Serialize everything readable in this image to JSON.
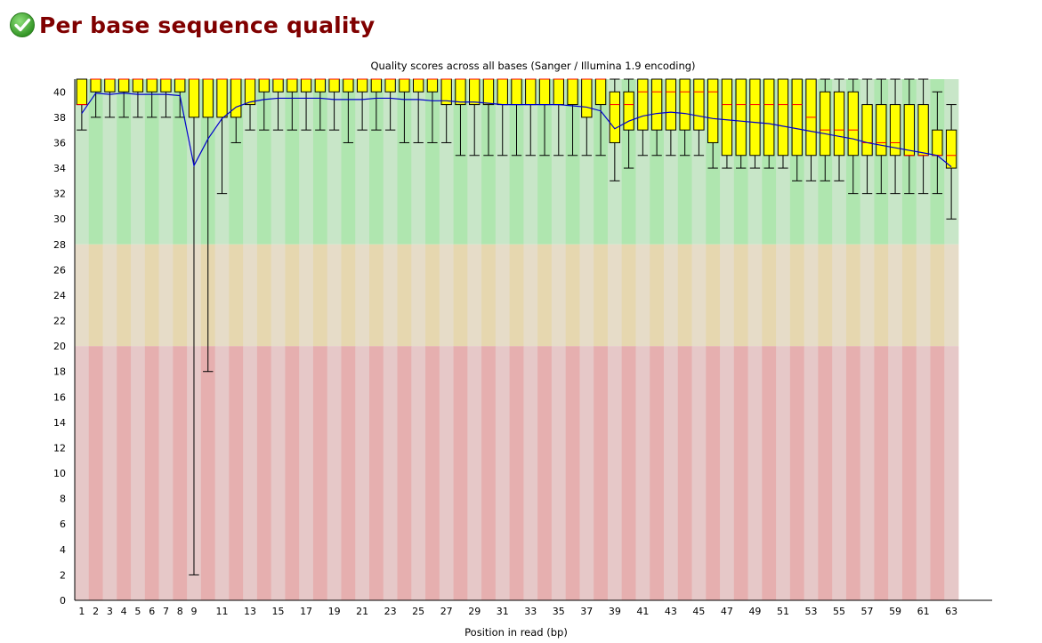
{
  "header": {
    "title": "Per base sequence quality",
    "status_icon": "pass-check-icon",
    "status_color": "#3aa62c"
  },
  "colors": {
    "title_color": "#800000",
    "zone_good": "#c8e6c8",
    "zone_good_alt": "#afe6af",
    "zone_warn": "#e6dcc8",
    "zone_warn_alt": "#e6d7af",
    "zone_bad": "#e6c8c8",
    "zone_bad_alt": "#e6afaf",
    "box_fill": "#ffff00",
    "median": "#ff0000",
    "mean_line": "#0000cc"
  },
  "chart_data": {
    "type": "boxplot",
    "title": "Quality scores across all bases (Sanger / Illumina 1.9 encoding)",
    "xlabel": "Position in read (bp)",
    "ylabel": "",
    "ylim": [
      0,
      41
    ],
    "yticks": [
      0,
      2,
      4,
      6,
      8,
      10,
      12,
      14,
      16,
      18,
      20,
      22,
      24,
      26,
      28,
      30,
      32,
      34,
      36,
      38,
      40
    ],
    "xtick_labels": [
      "1",
      "2",
      "3",
      "4",
      "5",
      "6",
      "7",
      "8",
      "9",
      "11",
      "13",
      "15",
      "17",
      "19",
      "21",
      "23",
      "25",
      "27",
      "29",
      "31",
      "33",
      "35",
      "37",
      "39",
      "41",
      "43",
      "45",
      "47",
      "49",
      "51",
      "53",
      "55",
      "57",
      "59",
      "61",
      "63"
    ],
    "zones": [
      {
        "name": "good",
        "from": 28,
        "to": 41
      },
      {
        "name": "reasonable",
        "from": 20,
        "to": 28
      },
      {
        "name": "poor",
        "from": 0,
        "to": 20
      }
    ],
    "positions": [
      1,
      2,
      3,
      4,
      5,
      6,
      7,
      8,
      9,
      10,
      11,
      12,
      13,
      14,
      15,
      16,
      17,
      18,
      19,
      20,
      21,
      22,
      23,
      24,
      25,
      26,
      27,
      28,
      29,
      30,
      31,
      32,
      33,
      34,
      35,
      36,
      37,
      38,
      39,
      40,
      41,
      42,
      43,
      44,
      45,
      46,
      47,
      48,
      49,
      50,
      51,
      52,
      53,
      54,
      55,
      56,
      57,
      58,
      59,
      60,
      61,
      62,
      63
    ],
    "q1": [
      39,
      40,
      40,
      40,
      40,
      40,
      40,
      40,
      38,
      38,
      38,
      38,
      39,
      40,
      40,
      40,
      40,
      40,
      40,
      40,
      40,
      40,
      40,
      40,
      40,
      40,
      39,
      39,
      39,
      39,
      39,
      39,
      39,
      39,
      39,
      39,
      38,
      39,
      36,
      37,
      37,
      37,
      37,
      37,
      37,
      36,
      35,
      35,
      35,
      35,
      35,
      35,
      35,
      35,
      35,
      35,
      35,
      35,
      35,
      35,
      35,
      35,
      34
    ],
    "median": [
      39,
      41,
      41,
      41,
      41,
      41,
      41,
      41,
      41,
      41,
      41,
      41,
      41,
      41,
      41,
      41,
      41,
      41,
      41,
      41,
      41,
      41,
      41,
      41,
      41,
      41,
      41,
      41,
      41,
      41,
      41,
      41,
      41,
      41,
      41,
      41,
      41,
      41,
      39,
      39,
      40,
      40,
      40,
      40,
      40,
      40,
      39,
      39,
      39,
      39,
      39,
      39,
      38,
      37,
      37,
      37,
      36,
      36,
      36,
      35,
      35,
      35,
      35
    ],
    "q3": [
      41,
      41,
      41,
      41,
      41,
      41,
      41,
      41,
      41,
      41,
      41,
      41,
      41,
      41,
      41,
      41,
      41,
      41,
      41,
      41,
      41,
      41,
      41,
      41,
      41,
      41,
      41,
      41,
      41,
      41,
      41,
      41,
      41,
      41,
      41,
      41,
      41,
      41,
      40,
      40,
      41,
      41,
      41,
      41,
      41,
      41,
      41,
      41,
      41,
      41,
      41,
      41,
      41,
      40,
      40,
      40,
      39,
      39,
      39,
      39,
      39,
      37,
      37
    ],
    "whisker_low": [
      37,
      38,
      38,
      38,
      38,
      38,
      38,
      38,
      2,
      18,
      32,
      36,
      37,
      37,
      37,
      37,
      37,
      37,
      37,
      36,
      37,
      37,
      37,
      36,
      36,
      36,
      36,
      35,
      35,
      35,
      35,
      35,
      35,
      35,
      35,
      35,
      35,
      35,
      33,
      34,
      35,
      35,
      35,
      35,
      35,
      34,
      34,
      34,
      34,
      34,
      34,
      33,
      33,
      33,
      33,
      32,
      32,
      32,
      32,
      32,
      32,
      32,
      30
    ],
    "whisker_high": [
      41,
      41,
      41,
      41,
      41,
      41,
      41,
      41,
      41,
      41,
      41,
      41,
      41,
      41,
      41,
      41,
      41,
      41,
      41,
      41,
      41,
      41,
      41,
      41,
      41,
      41,
      41,
      41,
      41,
      41,
      41,
      41,
      41,
      41,
      41,
      41,
      41,
      41,
      41,
      41,
      41,
      41,
      41,
      41,
      41,
      41,
      41,
      41,
      41,
      41,
      41,
      41,
      41,
      41,
      41,
      41,
      41,
      41,
      41,
      41,
      41,
      40,
      39
    ],
    "mean": [
      38.3,
      39.9,
      39.8,
      39.9,
      39.8,
      39.8,
      39.8,
      39.7,
      34.2,
      36.3,
      37.9,
      38.8,
      39.2,
      39.4,
      39.5,
      39.5,
      39.5,
      39.5,
      39.4,
      39.4,
      39.4,
      39.5,
      39.5,
      39.4,
      39.4,
      39.3,
      39.3,
      39.2,
      39.2,
      39.1,
      39.0,
      39.0,
      39.0,
      39.0,
      39.0,
      38.9,
      38.8,
      38.5,
      37.1,
      37.7,
      38.1,
      38.3,
      38.4,
      38.3,
      38.1,
      37.9,
      37.8,
      37.7,
      37.6,
      37.5,
      37.3,
      37.1,
      36.9,
      36.7,
      36.5,
      36.3,
      36.0,
      35.8,
      35.6,
      35.4,
      35.2,
      35.0,
      34.1
    ]
  }
}
